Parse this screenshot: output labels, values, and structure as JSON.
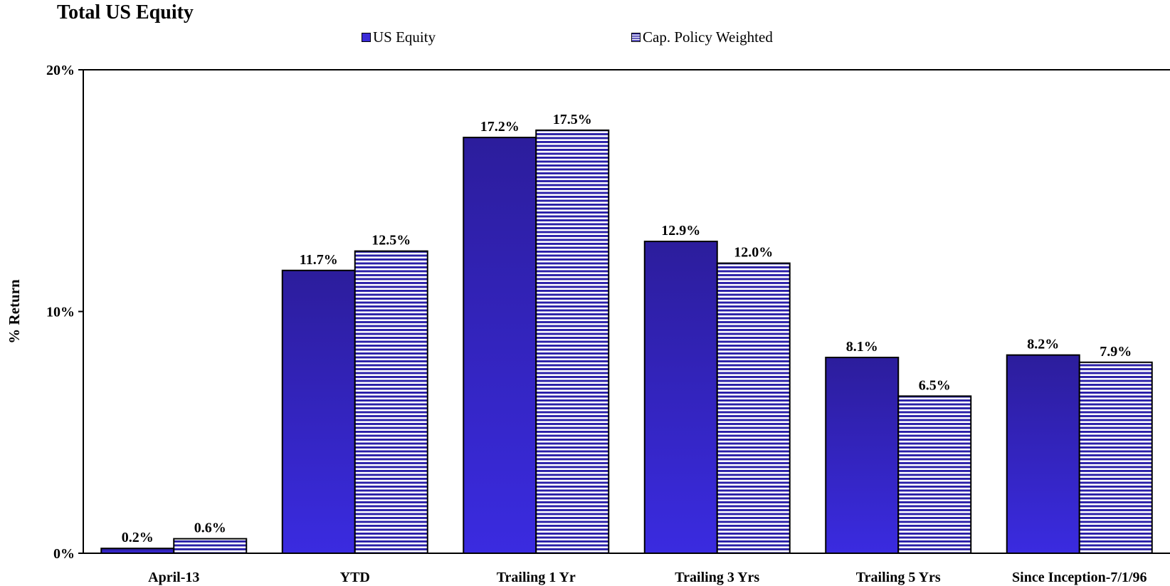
{
  "chart_data": {
    "type": "bar",
    "title": "Total US Equity",
    "ylabel": "% Return",
    "xlabel": "",
    "ylim": [
      0,
      20
    ],
    "yticks": [
      "0%",
      "10%",
      "20%"
    ],
    "categories": [
      "April-13",
      "YTD",
      "Trailing 1 Yr",
      "Trailing 3 Yrs",
      "Trailing 5 Yrs",
      "Since Inception-7/1/96"
    ],
    "series": [
      {
        "name": "US Equity",
        "values": [
          0.2,
          11.7,
          17.2,
          12.9,
          8.1,
          8.2
        ],
        "labels": [
          "0.2%",
          "11.7%",
          "17.2%",
          "12.9%",
          "8.1%",
          "8.2%"
        ],
        "color": "#3a2bd8",
        "pattern": "solid-gradient"
      },
      {
        "name": "Cap. Policy Weighted",
        "values": [
          0.6,
          12.5,
          17.5,
          12.0,
          6.5,
          7.9
        ],
        "labels": [
          "0.6%",
          "12.5%",
          "17.5%",
          "12.0%",
          "6.5%",
          "7.9%"
        ],
        "color": "#2a1fa8",
        "pattern": "horizontal-stripes"
      }
    ],
    "legend": "top",
    "grid": false
  }
}
